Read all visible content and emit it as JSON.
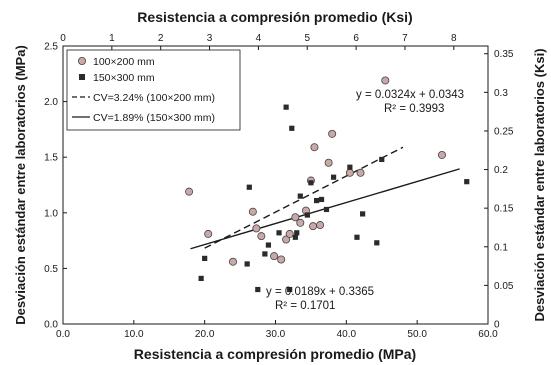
{
  "chart_data": {
    "type": "scatter",
    "title": "",
    "xlabel": "Resistencia a compresión promedio (MPa)",
    "ylabel": "Desviación estándar entre laboratorios (MPa)",
    "x2label": "Resistencia a compresión promedio (Ksi)",
    "y2label": "Desviación estándar entre laboratorios (Ksi)",
    "xlim": [
      0,
      60
    ],
    "ylim": [
      0,
      2.5
    ],
    "x2lim": [
      0,
      8.7
    ],
    "y2lim": [
      0,
      0.36
    ],
    "x_ticks": [
      "0.0",
      "10.0",
      "20.0",
      "30.0",
      "40.0",
      "50.0",
      "60.0"
    ],
    "y_ticks": [
      "0.0",
      "0.5",
      "1.0",
      "1.5",
      "2.0",
      "2.5"
    ],
    "x2_ticks": [
      "0",
      "1",
      "2",
      "3",
      "4",
      "5",
      "6",
      "7",
      "8"
    ],
    "y2_ticks": [
      "0",
      "0.05",
      "0.1",
      "0.15",
      "0.2",
      "0.25",
      "0.3",
      "0.35"
    ],
    "grid": false,
    "legend_position": "top-left",
    "series": [
      {
        "name": "100×200 mm",
        "marker": "circle",
        "color": "#c9a8a8",
        "points": [
          [
            17.8,
            1.19
          ],
          [
            20.5,
            0.81
          ],
          [
            24.0,
            0.56
          ],
          [
            26.8,
            1.01
          ],
          [
            27.3,
            0.86
          ],
          [
            28.0,
            0.79
          ],
          [
            29.8,
            0.61
          ],
          [
            30.8,
            0.58
          ],
          [
            31.5,
            0.76
          ],
          [
            32.0,
            0.81
          ],
          [
            32.8,
            0.96
          ],
          [
            33.5,
            0.91
          ],
          [
            34.3,
            1.02
          ],
          [
            35.0,
            1.29
          ],
          [
            35.3,
            0.88
          ],
          [
            35.5,
            1.59
          ],
          [
            36.3,
            0.89
          ],
          [
            37.5,
            1.45
          ],
          [
            38.0,
            1.71
          ],
          [
            40.5,
            1.36
          ],
          [
            42.0,
            1.36
          ],
          [
            45.5,
            2.19
          ],
          [
            53.5,
            1.52
          ]
        ]
      },
      {
        "name": "150×300 mm",
        "marker": "square",
        "color": "#2b2b2b",
        "points": [
          [
            19.5,
            0.41
          ],
          [
            20.0,
            0.59
          ],
          [
            26.0,
            0.54
          ],
          [
            26.3,
            1.23
          ],
          [
            27.5,
            0.31
          ],
          [
            28.5,
            0.63
          ],
          [
            29.0,
            0.71
          ],
          [
            30.5,
            0.82
          ],
          [
            31.5,
            1.95
          ],
          [
            32.0,
            0.31
          ],
          [
            32.3,
            1.76
          ],
          [
            32.8,
            0.78
          ],
          [
            33.0,
            0.82
          ],
          [
            33.5,
            1.15
          ],
          [
            34.5,
            0.98
          ],
          [
            35.0,
            1.27
          ],
          [
            35.8,
            1.11
          ],
          [
            36.5,
            1.12
          ],
          [
            37.2,
            1.03
          ],
          [
            38.2,
            1.32
          ],
          [
            40.5,
            1.41
          ],
          [
            41.5,
            0.78
          ],
          [
            42.3,
            0.99
          ],
          [
            44.3,
            0.73
          ],
          [
            45.0,
            1.48
          ],
          [
            57.0,
            1.28
          ]
        ]
      }
    ],
    "trendlines": [
      {
        "name": "CV=3.24% (100×200 mm)",
        "style": "dashed",
        "color": "#1a1a1a",
        "slope": 0.0324,
        "intercept": 0.0343,
        "x_range": [
          20.0,
          48.0
        ],
        "equation": "y = 0.0324x + 0.0343",
        "r2": "R² = 0.3993"
      },
      {
        "name": "CV=1.89% (150×300 mm)",
        "style": "solid",
        "color": "#1a1a1a",
        "slope": 0.0189,
        "intercept": 0.3365,
        "x_range": [
          18.0,
          56.0
        ],
        "equation": "y = 0.0189x + 0.3365",
        "r2": "R² = 0.1701"
      }
    ]
  }
}
